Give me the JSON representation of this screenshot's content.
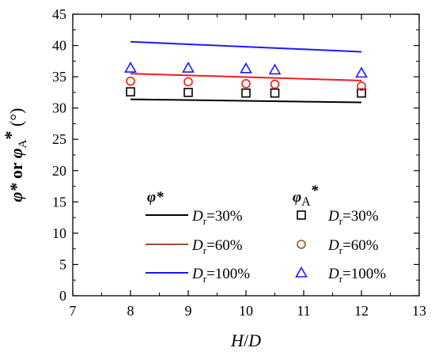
{
  "chart_data": {
    "type": "line",
    "xlabel": "H/D",
    "ylabel_parts": [
      "φ*",
      " or ",
      "φ",
      "A",
      "*",
      " (°)"
    ],
    "xlim": [
      7,
      13
    ],
    "ylim": [
      0,
      45
    ],
    "xticks": [
      7,
      8,
      9,
      10,
      11,
      12,
      13
    ],
    "yticks": [
      0,
      5,
      10,
      15,
      20,
      25,
      30,
      35,
      40,
      45
    ],
    "x_tick_labels": [
      "7",
      "8",
      "9",
      "10",
      "11",
      "12",
      "13"
    ],
    "y_tick_labels": [
      "0",
      "5",
      "10",
      "15",
      "20",
      "25",
      "30",
      "35",
      "40",
      "45"
    ],
    "grid": false,
    "legend_placement": "bottom-right",
    "legend_groups": [
      {
        "title": "φ*",
        "title_sub": ""
      },
      {
        "title": "φ",
        "title_sub": "A",
        "title_sup": "*"
      }
    ],
    "lines": [
      {
        "name_main": "D",
        "name_sub": "r",
        "name_rest": "=30%",
        "color": "#000000",
        "x": [
          8,
          12
        ],
        "y": [
          31.4,
          30.9
        ]
      },
      {
        "name_main": "D",
        "name_sub": "r",
        "name_rest": "=60%",
        "color": "#ee1c1c",
        "legend_color": "#a0522d",
        "x": [
          8,
          12
        ],
        "y": [
          35.5,
          34.4
        ]
      },
      {
        "name_main": "D",
        "name_sub": "r",
        "name_rest": "=100%",
        "color": "#1a1aff",
        "x": [
          8,
          12
        ],
        "y": [
          40.6,
          39.0
        ]
      }
    ],
    "scatter": [
      {
        "name_main": "D",
        "name_sub": "r",
        "name_rest": "=30%",
        "marker": "square",
        "color": "#000000",
        "x": [
          8,
          9,
          10,
          10.5,
          12
        ],
        "y": [
          32.6,
          32.5,
          32.4,
          32.4,
          32.4
        ]
      },
      {
        "name_main": "D",
        "name_sub": "r",
        "name_rest": "=60%",
        "marker": "circle",
        "color": "#ee1c1c",
        "legend_color": "#8b5a2b",
        "x": [
          8,
          9,
          10,
          10.5,
          12
        ],
        "y": [
          34.3,
          34.2,
          33.9,
          33.8,
          33.5
        ]
      },
      {
        "name_main": "D",
        "name_sub": "r",
        "name_rest": "=100%",
        "marker": "triangle",
        "color": "#1a1aff",
        "x": [
          8,
          9,
          10,
          10.5,
          12
        ],
        "y": [
          36.4,
          36.4,
          36.3,
          36.1,
          35.6
        ]
      }
    ]
  }
}
